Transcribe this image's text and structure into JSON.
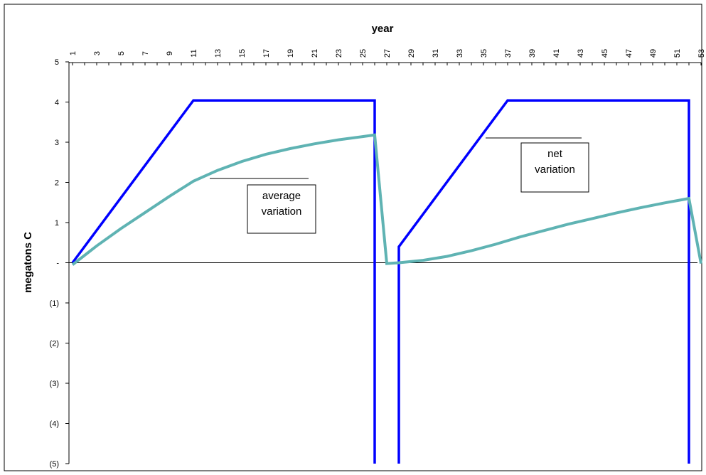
{
  "chart_data": {
    "type": "line",
    "title": "",
    "xlabel": "year",
    "ylabel": "megatons C",
    "x_ticks": [
      "1",
      "3",
      "5",
      "7",
      "9",
      "11",
      "13",
      "15",
      "17",
      "19",
      "21",
      "23",
      "25",
      "27",
      "29",
      "31",
      "33",
      "35",
      "37",
      "39",
      "41",
      "43",
      "45",
      "47",
      "49",
      "51",
      "53"
    ],
    "y_ticks": [
      "5",
      "4",
      "3",
      "2",
      "1",
      "-",
      "(1)",
      "(2)",
      "(3)",
      "(4)",
      "(5)"
    ],
    "xlim": [
      1,
      53
    ],
    "ylim": [
      -5,
      5
    ],
    "grid": false,
    "series": [
      {
        "color": "#0000ff",
        "points": [
          [
            1,
            0
          ],
          [
            11,
            4.04
          ],
          [
            26,
            4.04
          ],
          [
            26,
            -5
          ],
          [
            null,
            null
          ],
          [
            28,
            -5
          ],
          [
            28,
            0.4
          ],
          [
            37,
            4.04
          ],
          [
            52,
            4.04
          ],
          [
            52,
            -5
          ]
        ]
      },
      {
        "color": "#5fb3b3",
        "points": [
          [
            1,
            -0.05
          ],
          [
            3,
            0.42
          ],
          [
            5,
            0.85
          ],
          [
            7,
            1.25
          ],
          [
            9,
            1.65
          ],
          [
            11,
            2.03
          ],
          [
            13,
            2.3
          ],
          [
            15,
            2.52
          ],
          [
            17,
            2.7
          ],
          [
            19,
            2.84
          ],
          [
            21,
            2.96
          ],
          [
            23,
            3.06
          ],
          [
            25,
            3.14
          ],
          [
            26,
            3.18
          ],
          [
            27,
            -0.02
          ],
          [
            28,
            0.0
          ],
          [
            30,
            0.06
          ],
          [
            32,
            0.16
          ],
          [
            34,
            0.3
          ],
          [
            36,
            0.46
          ],
          [
            38,
            0.64
          ],
          [
            40,
            0.8
          ],
          [
            42,
            0.96
          ],
          [
            44,
            1.1
          ],
          [
            46,
            1.24
          ],
          [
            48,
            1.37
          ],
          [
            50,
            1.49
          ],
          [
            52,
            1.6
          ],
          [
            53,
            -0.02
          ]
        ]
      }
    ],
    "annotations": [
      {
        "lines": [
          "average",
          "variation"
        ],
        "at": [
          13,
          2.1
        ]
      },
      {
        "lines": [
          "net",
          "variation"
        ],
        "at": [
          35,
          3.1
        ]
      }
    ]
  }
}
